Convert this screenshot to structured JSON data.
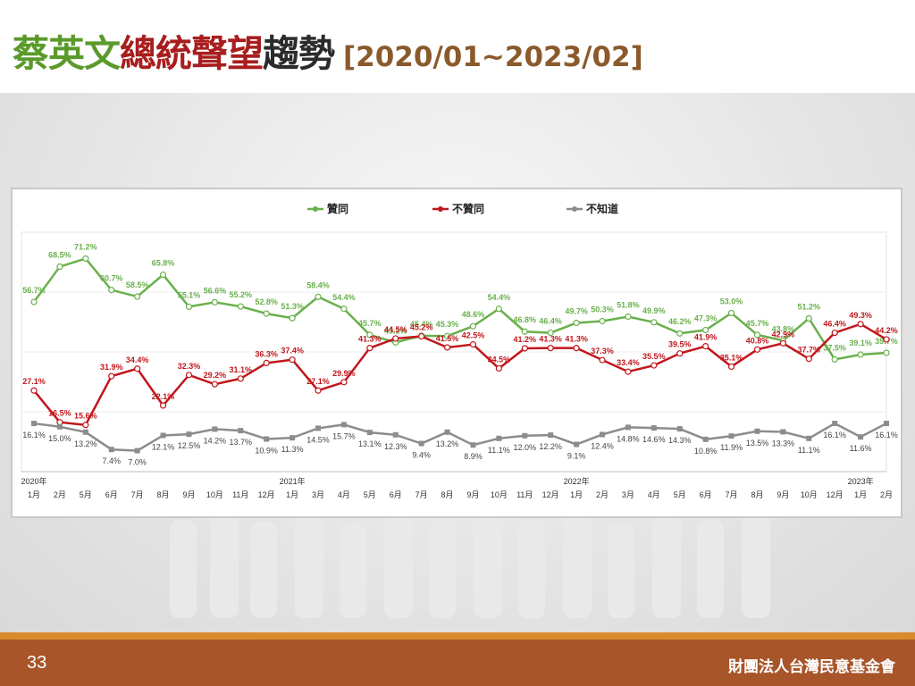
{
  "title": {
    "part1": "蔡英文",
    "part2": "總統聲望",
    "part3": "趨勢",
    "range": "[2020/01~2023/02]"
  },
  "footer": {
    "page_number": "33",
    "organization": "財團法人台灣民意基金會"
  },
  "colors": {
    "approve": "#6ab04c",
    "disapprove": "#c0171c",
    "unknown": "#8c8c8c",
    "title_green": "#5a9a2b",
    "title_red": "#a81e1e",
    "footer_bg": "#a8552a"
  },
  "chart_data": {
    "type": "line",
    "year_labels": [
      {
        "index": 0,
        "label": "2020年"
      },
      {
        "index": 10,
        "label": "2021年"
      },
      {
        "index": 21,
        "label": "2022年"
      },
      {
        "index": 32,
        "label": "2023年"
      }
    ],
    "categories": [
      "1月",
      "2月",
      "5月",
      "6月",
      "7月",
      "8月",
      "9月",
      "10月",
      "11月",
      "12月",
      "1月",
      "3月",
      "4月",
      "5月",
      "6月",
      "7月",
      "8月",
      "9月",
      "10月",
      "11月",
      "12月",
      "1月",
      "2月",
      "3月",
      "4月",
      "5月",
      "6月",
      "7月",
      "8月",
      "9月",
      "10月",
      "12月",
      "1月",
      "2月"
    ],
    "series": [
      {
        "name": "贊同",
        "color_key": "approve",
        "values": [
          56.7,
          68.5,
          71.2,
          60.7,
          58.5,
          65.8,
          55.1,
          56.6,
          55.2,
          52.8,
          51.3,
          58.4,
          54.4,
          45.7,
          43.2,
          45.4,
          45.3,
          48.6,
          54.4,
          46.8,
          46.4,
          49.7,
          50.3,
          51.8,
          49.9,
          46.2,
          47.3,
          53.0,
          45.7,
          43.8,
          51.2,
          37.5,
          39.1,
          39.7
        ],
        "labels": [
          "56.7%",
          "68.5%",
          "71.2%",
          "60.7%",
          "58.5%",
          "65.8%",
          "55.1%",
          "56.6%",
          "55.2%",
          "52.8%",
          "51.3%",
          "58.4%",
          "54.4%",
          "45.7%",
          "43.2%",
          "45.4%",
          "45.3%",
          "48.6%",
          "54.4%",
          "46.8%",
          "46.4%",
          "49.7%",
          "50.3%",
          "51.8%",
          "49.9%",
          "46.2%",
          "47.3%",
          "53.0%",
          "45.7%",
          "43.8%",
          "51.2%",
          "37.5%",
          "39.1%",
          "39.7%"
        ]
      },
      {
        "name": "不贊同",
        "color_key": "disapprove",
        "values": [
          27.1,
          16.5,
          15.6,
          31.9,
          34.4,
          22.1,
          32.3,
          29.2,
          31.1,
          36.3,
          37.4,
          27.1,
          29.9,
          41.3,
          44.5,
          45.2,
          41.5,
          42.5,
          34.5,
          41.2,
          41.3,
          41.3,
          37.3,
          33.4,
          35.5,
          39.5,
          41.9,
          35.1,
          40.8,
          42.9,
          37.7,
          46.4,
          49.3,
          44.2
        ],
        "labels": [
          "27.1%",
          "16.5%",
          "15.6%",
          "31.9%",
          "34.4%",
          "22.1%",
          "32.3%",
          "29.2%",
          "31.1%",
          "36.3%",
          "37.4%",
          "27.1%",
          "29.9%",
          "41.3%",
          "44.5%",
          "45.2%",
          "41.5%",
          "42.5%",
          "34.5%",
          "41.2%",
          "41.3%",
          "41.3%",
          "37.3%",
          "33.4%",
          "35.5%",
          "39.5%",
          "41.9%",
          "35.1%",
          "40.8%",
          "42.9%",
          "37.7%",
          "46.4%",
          "49.3%",
          "44.2%"
        ]
      },
      {
        "name": "不知道",
        "color_key": "unknown",
        "values": [
          16.1,
          15.0,
          13.2,
          7.4,
          7.0,
          12.1,
          12.5,
          14.2,
          13.7,
          10.9,
          11.3,
          14.5,
          15.7,
          13.1,
          12.3,
          9.4,
          13.2,
          8.9,
          11.1,
          12.0,
          12.2,
          9.1,
          12.4,
          14.8,
          14.6,
          14.3,
          10.8,
          11.9,
          13.5,
          13.3,
          11.1,
          16.1,
          11.6,
          16.1
        ],
        "labels": [
          "16.1%",
          "15.0%",
          "13.2%",
          "7.4%",
          "7.0%",
          "12.1%",
          "12.5%",
          "14.2%",
          "13.7%",
          "10.9%",
          "11.3%",
          "14.5%",
          "15.7%",
          "13.1%",
          "12.3%",
          "9.4%",
          "13.2%",
          "8.9%",
          "11.1%",
          "12.0%",
          "12.2%",
          "9.1%",
          "12.4%",
          "14.8%",
          "14.6%",
          "14.3%",
          "10.8%",
          "11.9%",
          "13.5%",
          "13.3%",
          "11.1%",
          "16.1%",
          "11.6%",
          "16.1%"
        ]
      }
    ],
    "ylim": [
      0,
      80
    ],
    "grid": true,
    "legend_placement": "top"
  }
}
